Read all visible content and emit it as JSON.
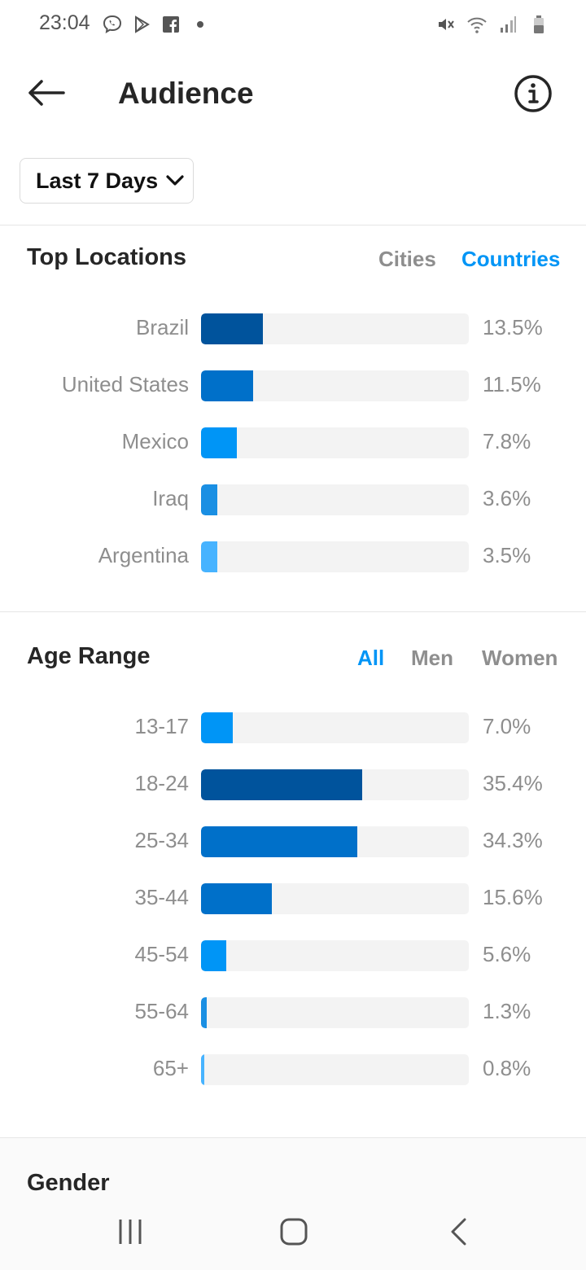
{
  "status_bar": {
    "time": "23:04",
    "left_icons": [
      "viber-icon",
      "play-store-icon",
      "facebook-icon",
      "dot-icon"
    ],
    "right_icons": [
      "mute-icon",
      "wifi-icon",
      "signal-icon",
      "battery-icon"
    ]
  },
  "header": {
    "title": "Audience",
    "back_icon": "arrow-left-icon",
    "info_icon": "info-icon"
  },
  "date_range": {
    "label": "Last 7 Days"
  },
  "top_locations": {
    "title": "Top Locations",
    "tabs": [
      {
        "label": "Cities",
        "active": false
      },
      {
        "label": "Countries",
        "active": true
      }
    ],
    "rows": [
      {
        "label": "Brazil",
        "value": 13.5,
        "display": "13.5%",
        "color": "#00539c"
      },
      {
        "label": "United States",
        "value": 11.5,
        "display": "11.5%",
        "color": "#0070c9"
      },
      {
        "label": "Mexico",
        "value": 7.8,
        "display": "7.8%",
        "color": "#0095f6"
      },
      {
        "label": "Iraq",
        "value": 3.6,
        "display": "3.6%",
        "color": "#1a8fe3"
      },
      {
        "label": "Argentina",
        "value": 3.5,
        "display": "3.5%",
        "color": "#47b3ff"
      }
    ]
  },
  "age_range": {
    "title": "Age Range",
    "tabs": [
      {
        "label": "All",
        "active": true
      },
      {
        "label": "Men",
        "active": false
      },
      {
        "label": "Women",
        "active": false
      }
    ],
    "rows": [
      {
        "label": "13-17",
        "value": 7.0,
        "display": "7.0%",
        "color": "#0095f6"
      },
      {
        "label": "18-24",
        "value": 35.4,
        "display": "35.4%",
        "color": "#00539c"
      },
      {
        "label": "25-34",
        "value": 34.3,
        "display": "34.3%",
        "color": "#0070c9"
      },
      {
        "label": "35-44",
        "value": 15.6,
        "display": "15.6%",
        "color": "#0070c9"
      },
      {
        "label": "45-54",
        "value": 5.6,
        "display": "5.6%",
        "color": "#0095f6"
      },
      {
        "label": "55-64",
        "value": 1.3,
        "display": "1.3%",
        "color": "#1a8fe3"
      },
      {
        "label": "65+",
        "value": 0.8,
        "display": "0.8%",
        "color": "#47b3ff"
      }
    ]
  },
  "gender": {
    "title": "Gender"
  },
  "colors": {
    "accent": "#0095f6",
    "muted_text": "#8e8e8e",
    "track": "#f3f3f3"
  },
  "nav_bar": {
    "icons": [
      "recent-apps-icon",
      "home-icon",
      "back-nav-icon"
    ]
  }
}
